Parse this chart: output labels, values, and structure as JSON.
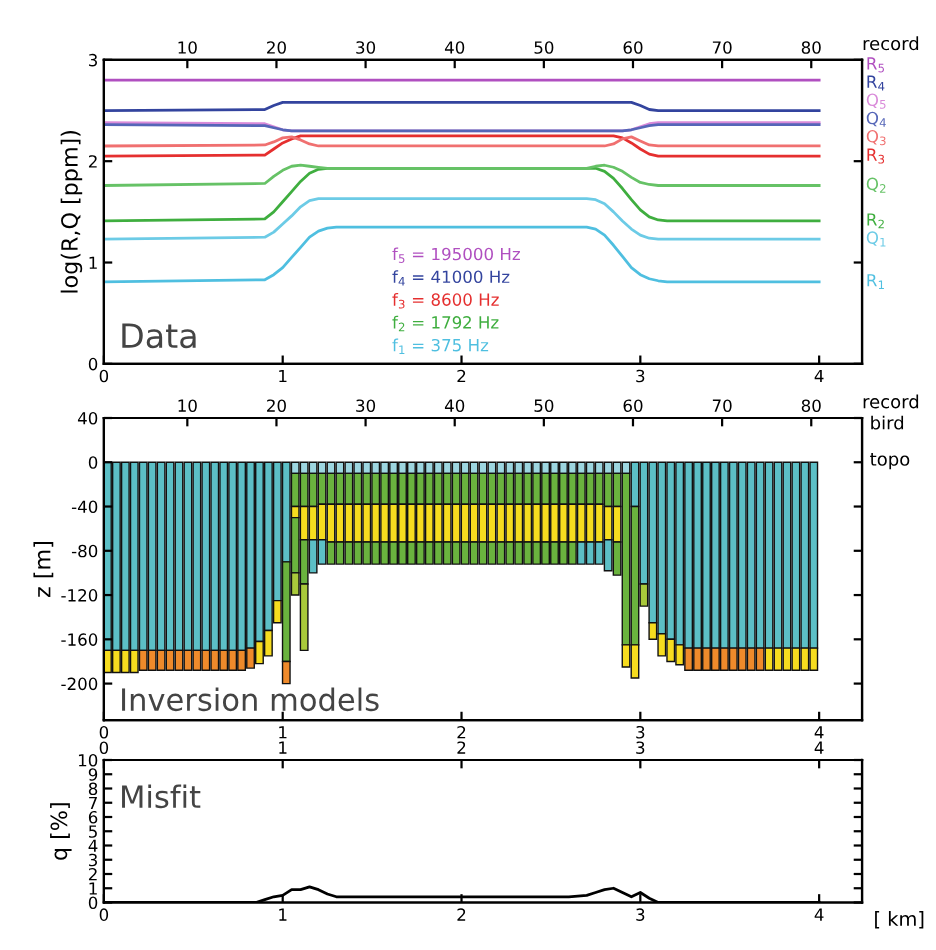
{
  "chart_data": [
    {
      "type": "line",
      "ylabel": "log(R,Q [ppm])",
      "x2label": "record",
      "xlim": [
        0,
        4.24
      ],
      "xticks": [
        0,
        1,
        2,
        3,
        4
      ],
      "x2lim": [
        0.64,
        85.7
      ],
      "x2ticks": [
        10,
        20,
        30,
        40,
        50,
        60,
        70,
        80
      ],
      "ylim": [
        0,
        3
      ],
      "yticks": [
        0,
        1,
        2,
        3
      ],
      "grid": false,
      "legend": false,
      "x": [
        0,
        0.9,
        0.95,
        1.0,
        1.05,
        1.1,
        1.15,
        1.2,
        1.25,
        1.3,
        2.7,
        2.75,
        2.8,
        2.85,
        2.9,
        2.95,
        3.0,
        3.05,
        3.1,
        3.15,
        4.0
      ],
      "annotations": [
        "Data",
        "f$_{5}$ = 195000 Hz",
        "f$_{4}$ = 41000 Hz",
        "f$_{3}$ = 8600 Hz",
        "f$_{2}$ = 1792 Hz",
        "f$_{1}$ = 375 Hz"
      ],
      "series": [
        {
          "name": "R$_{5}$",
          "color": "#b04fc0",
          "values": [
            2.8,
            2.8,
            2.8,
            2.8,
            2.8,
            2.8,
            2.8,
            2.8,
            2.8,
            2.8,
            2.8,
            2.8,
            2.8,
            2.8,
            2.8,
            2.8,
            2.8,
            2.8,
            2.8,
            2.8,
            2.8
          ]
        },
        {
          "name": "Q$_{5}$",
          "color": "#d98ad9",
          "values": [
            2.38,
            2.37,
            2.34,
            2.31,
            2.3,
            2.3,
            2.3,
            2.3,
            2.3,
            2.3,
            2.3,
            2.3,
            2.3,
            2.3,
            2.3,
            2.31,
            2.34,
            2.37,
            2.38,
            2.38,
            2.38
          ]
        },
        {
          "name": "R$_{4}$",
          "color": "#33449e",
          "values": [
            2.5,
            2.51,
            2.55,
            2.58,
            2.58,
            2.58,
            2.58,
            2.58,
            2.58,
            2.58,
            2.58,
            2.58,
            2.58,
            2.58,
            2.58,
            2.58,
            2.55,
            2.51,
            2.5,
            2.5,
            2.5
          ]
        },
        {
          "name": "Q$_{4}$",
          "color": "#5566b8",
          "values": [
            2.36,
            2.35,
            2.33,
            2.31,
            2.3,
            2.3,
            2.3,
            2.3,
            2.3,
            2.3,
            2.3,
            2.3,
            2.3,
            2.3,
            2.3,
            2.31,
            2.33,
            2.35,
            2.36,
            2.36,
            2.36
          ]
        },
        {
          "name": "R$_{3}$",
          "color": "#e52f2f",
          "values": [
            2.05,
            2.06,
            2.12,
            2.18,
            2.22,
            2.25,
            2.25,
            2.25,
            2.25,
            2.25,
            2.25,
            2.25,
            2.25,
            2.25,
            2.23,
            2.18,
            2.12,
            2.07,
            2.05,
            2.05,
            2.05
          ]
        },
        {
          "name": "Q$_{3}$",
          "color": "#f07070",
          "values": [
            2.15,
            2.16,
            2.19,
            2.23,
            2.24,
            2.21,
            2.17,
            2.15,
            2.15,
            2.15,
            2.15,
            2.15,
            2.15,
            2.17,
            2.22,
            2.24,
            2.2,
            2.16,
            2.15,
            2.15,
            2.15
          ]
        },
        {
          "name": "R$_{2}$",
          "color": "#3fae3f",
          "values": [
            1.41,
            1.43,
            1.5,
            1.6,
            1.7,
            1.8,
            1.88,
            1.92,
            1.93,
            1.93,
            1.93,
            1.93,
            1.9,
            1.83,
            1.73,
            1.62,
            1.52,
            1.45,
            1.42,
            1.41,
            1.41
          ]
        },
        {
          "name": "Q$_{2}$",
          "color": "#66c266",
          "values": [
            1.76,
            1.78,
            1.85,
            1.91,
            1.95,
            1.96,
            1.95,
            1.94,
            1.93,
            1.93,
            1.93,
            1.95,
            1.96,
            1.94,
            1.9,
            1.84,
            1.79,
            1.77,
            1.76,
            1.76,
            1.76
          ]
        },
        {
          "name": "R$_{1}$",
          "color": "#4fbfe0",
          "values": [
            0.81,
            0.83,
            0.88,
            0.95,
            1.05,
            1.15,
            1.25,
            1.31,
            1.34,
            1.35,
            1.35,
            1.33,
            1.27,
            1.17,
            1.06,
            0.95,
            0.88,
            0.84,
            0.82,
            0.81,
            0.81
          ]
        },
        {
          "name": "Q$_{1}$",
          "color": "#6ccbe6",
          "values": [
            1.23,
            1.25,
            1.3,
            1.38,
            1.46,
            1.55,
            1.61,
            1.63,
            1.63,
            1.63,
            1.63,
            1.62,
            1.58,
            1.5,
            1.41,
            1.33,
            1.27,
            1.24,
            1.23,
            1.23,
            1.23
          ]
        }
      ]
    },
    {
      "type": "bar",
      "stacked": true,
      "ylabel": "z [m]",
      "x2label": "record",
      "xlim": [
        0,
        4.24
      ],
      "xticks": [
        0,
        1,
        2,
        3,
        4
      ],
      "x2lim": [
        0.64,
        85.7
      ],
      "x2ticks": [
        10,
        20,
        30,
        40,
        50,
        60,
        70,
        80
      ],
      "ylim": [
        -233,
        40
      ],
      "yticks": [
        40,
        0,
        -40,
        -80,
        -120,
        -160,
        -200
      ],
      "grid": false,
      "legend": false,
      "annotations": [
        "Inversion models",
        "bird",
        "topo"
      ],
      "x": [
        0.02,
        0.07,
        0.12,
        0.17,
        0.22,
        0.27,
        0.32,
        0.37,
        0.42,
        0.47,
        0.52,
        0.57,
        0.62,
        0.67,
        0.72,
        0.77,
        0.82,
        0.87,
        0.92,
        0.97,
        1.02,
        1.07,
        1.12,
        1.17,
        1.22,
        1.27,
        1.32,
        1.37,
        1.42,
        1.47,
        1.52,
        1.57,
        1.62,
        1.67,
        1.72,
        1.77,
        1.82,
        1.87,
        1.92,
        1.97,
        2.02,
        2.07,
        2.12,
        2.17,
        2.22,
        2.27,
        2.32,
        2.37,
        2.42,
        2.47,
        2.52,
        2.57,
        2.62,
        2.67,
        2.72,
        2.77,
        2.82,
        2.87,
        2.92,
        2.97,
        3.02,
        3.07,
        3.12,
        3.17,
        3.22,
        3.27,
        3.32,
        3.37,
        3.42,
        3.47,
        3.52,
        3.57,
        3.62,
        3.67,
        3.72,
        3.77,
        3.82,
        3.87,
        3.92,
        3.97
      ],
      "series": [
        {
          "values": [
            -170,
            -170,
            -170,
            -170,
            -170,
            -170,
            -170,
            -170,
            -170,
            -170,
            -170,
            -170,
            -170,
            -170,
            -170,
            -170,
            -168,
            -162,
            -152,
            -125,
            -90,
            -10,
            -10,
            -10,
            -10,
            -10,
            -10,
            -10,
            -10,
            -10,
            -10,
            -10,
            -10,
            -10,
            -10,
            -10,
            -10,
            -10,
            -10,
            -10,
            -10,
            -10,
            -10,
            -10,
            -10,
            -10,
            -10,
            -10,
            -10,
            -10,
            -10,
            -10,
            -10,
            -10,
            -10,
            -10,
            -10,
            -10,
            -10,
            -40,
            -110,
            -145,
            -155,
            -160,
            -165,
            -168,
            -168,
            -168,
            -168,
            -168,
            -168,
            -168,
            -168,
            -168,
            -168,
            -168,
            -168,
            -168,
            -168,
            -168
          ],
          "colors": [
            "#5cbfc6",
            "#5cbfc6",
            "#5cbfc6",
            "#5cbfc6",
            "#5cbfc6",
            "#5cbfc6",
            "#5cbfc6",
            "#5cbfc6",
            "#5cbfc6",
            "#5cbfc6",
            "#5cbfc6",
            "#5cbfc6",
            "#5cbfc6",
            "#5cbfc6",
            "#5cbfc6",
            "#5cbfc6",
            "#5cbfc6",
            "#5cbfc6",
            "#5cbfc6",
            "#5cbfc6",
            "#5cbfc6",
            "#9dd6e0",
            "#9dd6e0",
            "#9dd6e0",
            "#9dd6e0",
            "#9dd6e0",
            "#9dd6e0",
            "#9dd6e0",
            "#9dd6e0",
            "#9dd6e0",
            "#9dd6e0",
            "#9dd6e0",
            "#9dd6e0",
            "#9dd6e0",
            "#9dd6e0",
            "#9dd6e0",
            "#9dd6e0",
            "#9dd6e0",
            "#9dd6e0",
            "#9dd6e0",
            "#9dd6e0",
            "#9dd6e0",
            "#9dd6e0",
            "#9dd6e0",
            "#9dd6e0",
            "#9dd6e0",
            "#9dd6e0",
            "#9dd6e0",
            "#9dd6e0",
            "#9dd6e0",
            "#9dd6e0",
            "#9dd6e0",
            "#9dd6e0",
            "#9dd6e0",
            "#9dd6e0",
            "#9dd6e0",
            "#9dd6e0",
            "#9dd6e0",
            "#9dd6e0",
            "#5cbfc6",
            "#5cbfc6",
            "#5cbfc6",
            "#5cbfc6",
            "#5cbfc6",
            "#5cbfc6",
            "#5cbfc6",
            "#5cbfc6",
            "#5cbfc6",
            "#5cbfc6",
            "#5cbfc6",
            "#5cbfc6",
            "#5cbfc6",
            "#5cbfc6",
            "#5cbfc6",
            "#5cbfc6",
            "#5cbfc6",
            "#5cbfc6",
            "#5cbfc6",
            "#5cbfc6",
            "#5cbfc6"
          ]
        },
        {
          "values": [
            -20,
            -20,
            -20,
            -20,
            -18,
            -18,
            -18,
            -18,
            -18,
            -18,
            -18,
            -18,
            -18,
            -18,
            -18,
            -18,
            -18,
            -20,
            -23,
            -20,
            -90,
            -30,
            -30,
            -30,
            -28,
            -28,
            -28,
            -28,
            -28,
            -28,
            -28,
            -28,
            -28,
            -28,
            -28,
            -28,
            -28,
            -28,
            -28,
            -28,
            -28,
            -28,
            -28,
            -28,
            -28,
            -28,
            -28,
            -28,
            -28,
            -28,
            -28,
            -28,
            -28,
            -28,
            -28,
            -28,
            -30,
            -30,
            -155,
            -125,
            -20,
            -15,
            -20,
            -20,
            -18,
            -20,
            -20,
            -20,
            -20,
            -20,
            -20,
            -20,
            -20,
            -20,
            -20,
            -20,
            -20,
            -20,
            -20,
            -20
          ],
          "colors": [
            "#f6dc1f",
            "#f6dc1f",
            "#f6dc1f",
            "#f6dc1f",
            "#ef8a2b",
            "#ef8a2b",
            "#ef8a2b",
            "#ef8a2b",
            "#ef8a2b",
            "#ef8a2b",
            "#ef8a2b",
            "#ef8a2b",
            "#ef8a2b",
            "#ef8a2b",
            "#ef8a2b",
            "#ef8a2b",
            "#ef8a2b",
            "#f6dc1f",
            "#f6dc1f",
            "#f6dc1f",
            "#6ab33e",
            "#6ab33e",
            "#6ab33e",
            "#6ab33e",
            "#6ab33e",
            "#6ab33e",
            "#6ab33e",
            "#6ab33e",
            "#6ab33e",
            "#6ab33e",
            "#6ab33e",
            "#6ab33e",
            "#6ab33e",
            "#6ab33e",
            "#6ab33e",
            "#6ab33e",
            "#6ab33e",
            "#6ab33e",
            "#6ab33e",
            "#6ab33e",
            "#6ab33e",
            "#6ab33e",
            "#6ab33e",
            "#6ab33e",
            "#6ab33e",
            "#6ab33e",
            "#6ab33e",
            "#6ab33e",
            "#6ab33e",
            "#6ab33e",
            "#6ab33e",
            "#6ab33e",
            "#6ab33e",
            "#6ab33e",
            "#6ab33e",
            "#6ab33e",
            "#6ab33e",
            "#6ab33e",
            "#6ab33e",
            "#6ab33e",
            "#a9c93b",
            "#f6dc1f",
            "#f6dc1f",
            "#f6dc1f",
            "#f6dc1f",
            "#ef8a2b",
            "#ef8a2b",
            "#ef8a2b",
            "#ef8a2b",
            "#ef8a2b",
            "#ef8a2b",
            "#ef8a2b",
            "#ef8a2b",
            "#ef8a2b",
            "#f6dc1f",
            "#f6dc1f",
            "#f6dc1f",
            "#f6dc1f",
            "#f6dc1f",
            "#f6dc1f"
          ]
        },
        {
          "values": [
            null,
            null,
            null,
            null,
            null,
            null,
            null,
            null,
            null,
            null,
            null,
            null,
            null,
            null,
            null,
            null,
            null,
            null,
            null,
            null,
            -20,
            -10,
            -30,
            -30,
            -32,
            -34,
            -34,
            -34,
            -34,
            -34,
            -34,
            -34,
            -34,
            -34,
            -34,
            -34,
            -34,
            -34,
            -34,
            -34,
            -34,
            -34,
            -34,
            -34,
            -34,
            -34,
            -34,
            -34,
            -34,
            -34,
            -34,
            -34,
            -34,
            -34,
            -34,
            -34,
            -30,
            -32,
            -20,
            -30,
            null,
            null,
            null,
            null,
            null,
            null,
            null,
            null,
            null,
            null,
            null,
            null,
            null,
            null,
            null,
            null,
            null,
            null,
            null,
            null
          ],
          "colors": [
            null,
            null,
            null,
            null,
            null,
            null,
            null,
            null,
            null,
            null,
            null,
            null,
            null,
            null,
            null,
            null,
            null,
            null,
            null,
            null,
            "#ef8a2b",
            "#f6dc1f",
            "#f6dc1f",
            "#f6dc1f",
            "#f6dc1f",
            "#f6dc1f",
            "#f6dc1f",
            "#f6dc1f",
            "#f6dc1f",
            "#f6dc1f",
            "#f6dc1f",
            "#f6dc1f",
            "#f6dc1f",
            "#f6dc1f",
            "#f6dc1f",
            "#f6dc1f",
            "#f6dc1f",
            "#f6dc1f",
            "#f6dc1f",
            "#f6dc1f",
            "#f6dc1f",
            "#f6dc1f",
            "#f6dc1f",
            "#f6dc1f",
            "#f6dc1f",
            "#f6dc1f",
            "#f6dc1f",
            "#f6dc1f",
            "#f6dc1f",
            "#f6dc1f",
            "#f6dc1f",
            "#f6dc1f",
            "#f6dc1f",
            "#f6dc1f",
            "#f6dc1f",
            "#f6dc1f",
            "#f6dc1f",
            "#f6dc1f",
            "#f6dc1f",
            "#f6dc1f",
            null,
            null,
            null,
            null,
            null,
            null,
            null,
            null,
            null,
            null,
            null,
            null,
            null,
            null,
            null,
            null,
            null,
            null,
            null,
            null
          ]
        },
        {
          "values": [
            null,
            null,
            null,
            null,
            null,
            null,
            null,
            null,
            null,
            null,
            null,
            null,
            null,
            null,
            null,
            null,
            null,
            null,
            null,
            null,
            null,
            -50,
            -40,
            -30,
            -22,
            -20,
            -20,
            -20,
            -20,
            -20,
            -20,
            -20,
            -20,
            -20,
            -20,
            -20,
            -20,
            -20,
            -20,
            -20,
            -20,
            -20,
            -20,
            -20,
            -20,
            -20,
            -20,
            -20,
            -20,
            -20,
            -20,
            -20,
            -20,
            -20,
            -20,
            -20,
            -28,
            -30,
            null,
            null,
            null,
            null,
            null,
            null,
            null,
            null,
            null,
            null,
            null,
            null,
            null,
            null,
            null,
            null,
            null,
            null,
            null,
            null,
            null,
            null
          ],
          "colors": [
            null,
            null,
            null,
            null,
            null,
            null,
            null,
            null,
            null,
            null,
            null,
            null,
            null,
            null,
            null,
            null,
            null,
            null,
            null,
            null,
            null,
            "#6ab33e",
            "#6ab33e",
            "#5cbfc6",
            "#5cbfc6",
            "#6ab33e",
            "#6ab33e",
            "#6ab33e",
            "#6ab33e",
            "#6ab33e",
            "#6ab33e",
            "#6ab33e",
            "#6ab33e",
            "#6ab33e",
            "#6ab33e",
            "#6ab33e",
            "#6ab33e",
            "#6ab33e",
            "#6ab33e",
            "#6ab33e",
            "#6ab33e",
            "#6ab33e",
            "#6ab33e",
            "#6ab33e",
            "#6ab33e",
            "#6ab33e",
            "#6ab33e",
            "#6ab33e",
            "#6ab33e",
            "#6ab33e",
            "#6ab33e",
            "#6ab33e",
            "#6ab33e",
            "#5cbfc6",
            "#5cbfc6",
            "#5cbfc6",
            "#5cbfc6",
            "#6ab33e",
            null,
            null,
            null,
            null,
            null,
            null,
            null,
            null,
            null,
            null,
            null,
            null,
            null,
            null,
            null,
            null,
            null,
            null,
            null,
            null,
            null,
            null
          ]
        },
        {
          "values": [
            null,
            null,
            null,
            null,
            null,
            null,
            null,
            null,
            null,
            null,
            null,
            null,
            null,
            null,
            null,
            null,
            null,
            null,
            null,
            null,
            null,
            -20,
            -60,
            null,
            null,
            null,
            null,
            null,
            null,
            null,
            null,
            null,
            null,
            null,
            null,
            null,
            null,
            null,
            null,
            null,
            null,
            null,
            null,
            null,
            null,
            null,
            null,
            null,
            null,
            null,
            null,
            null,
            null,
            null,
            null,
            null,
            null,
            null,
            null,
            null,
            null,
            null,
            null,
            null,
            null,
            null,
            null,
            null,
            null,
            null,
            null,
            null,
            null,
            null,
            null,
            null,
            null,
            null,
            null,
            null
          ],
          "colors": [
            null,
            null,
            null,
            null,
            null,
            null,
            null,
            null,
            null,
            null,
            null,
            null,
            null,
            null,
            null,
            null,
            null,
            null,
            null,
            null,
            null,
            "#a9c93b",
            "#a9c93b",
            null,
            null,
            null,
            null,
            null,
            null,
            null,
            null,
            null,
            null,
            null,
            null,
            null,
            null,
            null,
            null,
            null,
            null,
            null,
            null,
            null,
            null,
            null,
            null,
            null,
            null,
            null,
            null,
            null,
            null,
            null,
            null,
            null,
            null,
            null,
            null,
            null,
            null,
            null,
            null,
            null,
            null,
            null,
            null,
            null,
            null,
            null,
            null,
            null,
            null,
            null,
            null,
            null,
            null,
            null,
            null,
            null
          ]
        }
      ]
    },
    {
      "type": "line",
      "ylabel": "q [%]",
      "xlabel": "[ km]",
      "xlim": [
        0,
        4.24
      ],
      "xticks": [
        0,
        1,
        2,
        3,
        4
      ],
      "x2lim": [
        0,
        4.24
      ],
      "x2ticks": [
        0,
        1,
        2,
        3,
        4
      ],
      "ylim": [
        0,
        10
      ],
      "yticks": [
        0,
        1,
        2,
        3,
        4,
        5,
        6,
        7,
        8,
        9,
        10
      ],
      "grid": false,
      "legend": false,
      "annotations": [
        "Misfit"
      ],
      "x": [
        0,
        0.85,
        0.9,
        0.95,
        1.0,
        1.05,
        1.1,
        1.15,
        1.2,
        1.25,
        1.3,
        1.4,
        2.6,
        2.7,
        2.75,
        2.8,
        2.85,
        2.9,
        2.95,
        3.0,
        3.05,
        3.1,
        3.2,
        4.0
      ],
      "series": [
        {
          "color": "#000000",
          "values": [
            0,
            0,
            0.2,
            0.4,
            0.5,
            0.9,
            0.9,
            1.1,
            0.9,
            0.6,
            0.4,
            0.4,
            0.4,
            0.5,
            0.7,
            0.9,
            1.0,
            0.7,
            0.4,
            0.7,
            0.3,
            0,
            0,
            0
          ]
        }
      ]
    }
  ]
}
